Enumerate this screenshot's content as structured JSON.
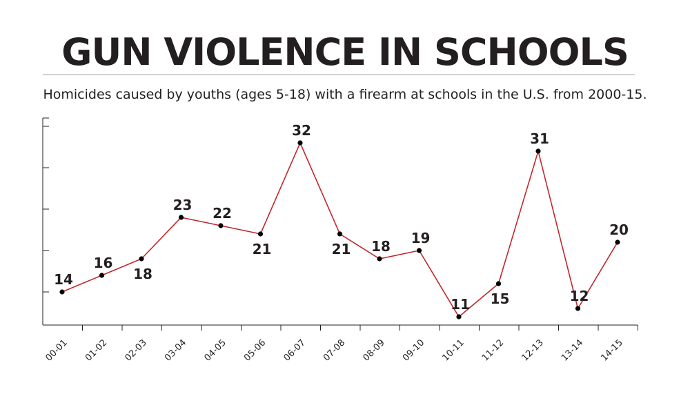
{
  "chart_data": {
    "type": "line",
    "title": "GUN VIOLENCE IN SCHOOLS",
    "subtitle": "Homicides caused by youths (ages 5-18) with a firearm at schools in the U.S. from 2000-15.",
    "categories": [
      "00-01",
      "01-02",
      "02-03",
      "03-04",
      "04-05",
      "05-06",
      "06-07",
      "07-08",
      "08-09",
      "09-10",
      "10-11",
      "11-12",
      "12-13",
      "13-14",
      "14-15"
    ],
    "values": [
      14,
      16,
      18,
      23,
      22,
      21,
      32,
      21,
      18,
      19,
      11,
      15,
      31,
      12,
      20
    ],
    "label_position": [
      "above",
      "above",
      "below",
      "above",
      "above",
      "below",
      "above",
      "below",
      "above",
      "above",
      "above",
      "below",
      "above",
      "above",
      "above"
    ],
    "ylim": [
      10,
      35
    ],
    "yticks": [
      14,
      19,
      24,
      29,
      34
    ],
    "xlabel": "",
    "ylabel": "",
    "line_color": "#c1272d",
    "point_color": "#000000",
    "text_color": "#231f20"
  }
}
